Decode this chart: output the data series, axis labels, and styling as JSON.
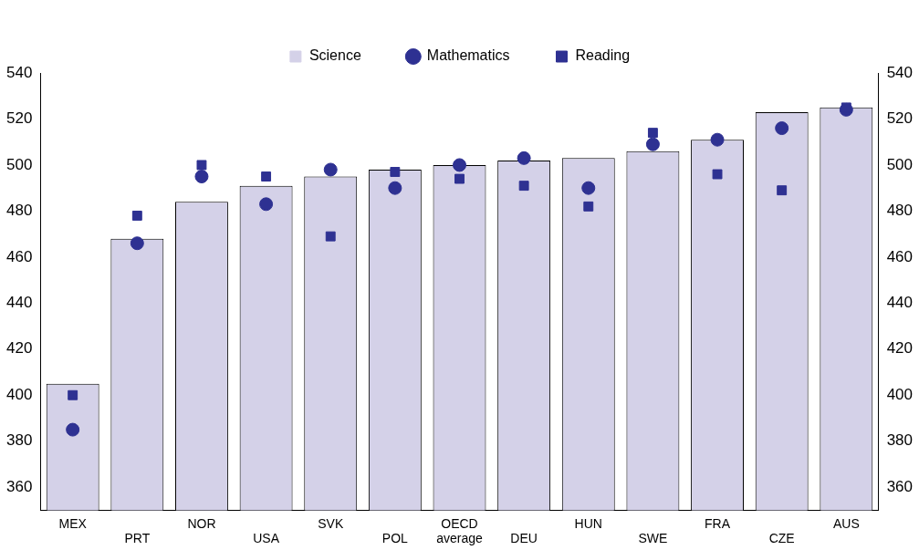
{
  "chart_data": {
    "type": "bar",
    "categories": [
      "MEX",
      "PRT",
      "NOR",
      "USA",
      "SVK",
      "POL",
      "OECD average",
      "DEU",
      "HUN",
      "SWE",
      "FRA",
      "CZE",
      "AUS"
    ],
    "series": [
      {
        "name": "Science",
        "color": "#d4d1e8",
        "values": [
          405,
          468,
          484,
          491,
          495,
          498,
          500,
          502,
          503,
          506,
          511,
          523,
          525
        ]
      },
      {
        "name": "Mathematics",
        "type": "scatter",
        "marker": "circle",
        "color": "#2e3192",
        "x": [
          "MEX",
          "PRT",
          "NOR",
          "USA",
          "SVK",
          "POL",
          "OECD average",
          "DEU",
          "HUN",
          "SWE",
          "FRA",
          "CZE",
          "AUS"
        ],
        "values": [
          385,
          466,
          495,
          483,
          498,
          490,
          500,
          503,
          490,
          509,
          511,
          516,
          524
        ]
      },
      {
        "name": "Reading",
        "type": "scatter",
        "marker": "square",
        "color": "#2e3192",
        "x": [
          "MEX",
          "PRT",
          "NOR",
          "USA",
          "SVK",
          "POL",
          "OECD average",
          "DEU",
          "HUN",
          "SWE",
          "FRA",
          "CZE",
          "AUS"
        ],
        "values": [
          400,
          478,
          500,
          495,
          469,
          497,
          494,
          491,
          482,
          514,
          496,
          489,
          525
        ]
      }
    ],
    "ylim": [
      350,
      540
    ],
    "yticks": [
      360,
      380,
      400,
      420,
      440,
      460,
      480,
      500,
      520,
      540
    ],
    "y2lim": [
      350,
      540
    ],
    "y2ticks": [
      360,
      380,
      400,
      420,
      440,
      460,
      480,
      500,
      520,
      540
    ],
    "grid": false,
    "legend": "top"
  }
}
